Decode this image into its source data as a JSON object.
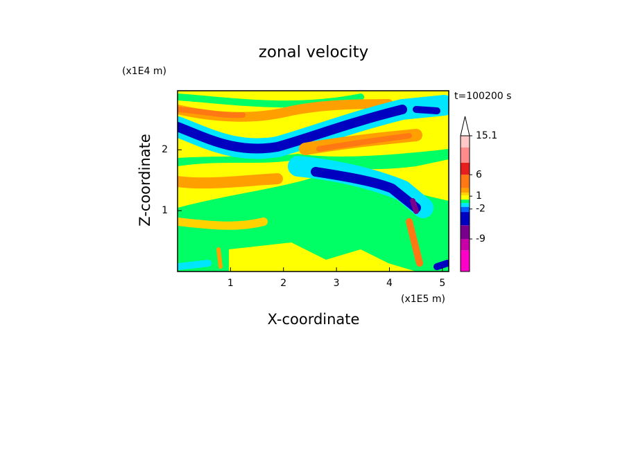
{
  "chart_data": {
    "type": "contour",
    "title": "zonal velocity",
    "x_label": "X-coordinate",
    "y_label": "Z-coordinate",
    "x_unit": "(x1E5 m)",
    "y_unit": "(x1E4 m)",
    "annotation": "t=100200 s",
    "xlim": [
      0,
      5.12
    ],
    "xticks": [
      1,
      2,
      3,
      4,
      5
    ],
    "ylim": [
      0,
      2.97
    ],
    "yticks": [
      1,
      2
    ],
    "colorbar": {
      "levels": [
        -16.6,
        -11.7,
        -9,
        -5.8,
        -2.7,
        -1.5,
        -0.6,
        0.2,
        1.2,
        1.8,
        2.9,
        6,
        8.8,
        12.4,
        15.1
      ],
      "colors": [
        "#ff00c8",
        "#c800a8",
        "#78008c",
        "#0000c0",
        "#0064ff",
        "#00e6ff",
        "#00ff64",
        "#ffff00",
        "#ffd200",
        "#ffa000",
        "#ff7814",
        "#e61e1e",
        "#ff8c8c",
        "#ffc8c8"
      ],
      "ticks": [
        15.1,
        6,
        1,
        -2,
        -9
      ]
    }
  }
}
